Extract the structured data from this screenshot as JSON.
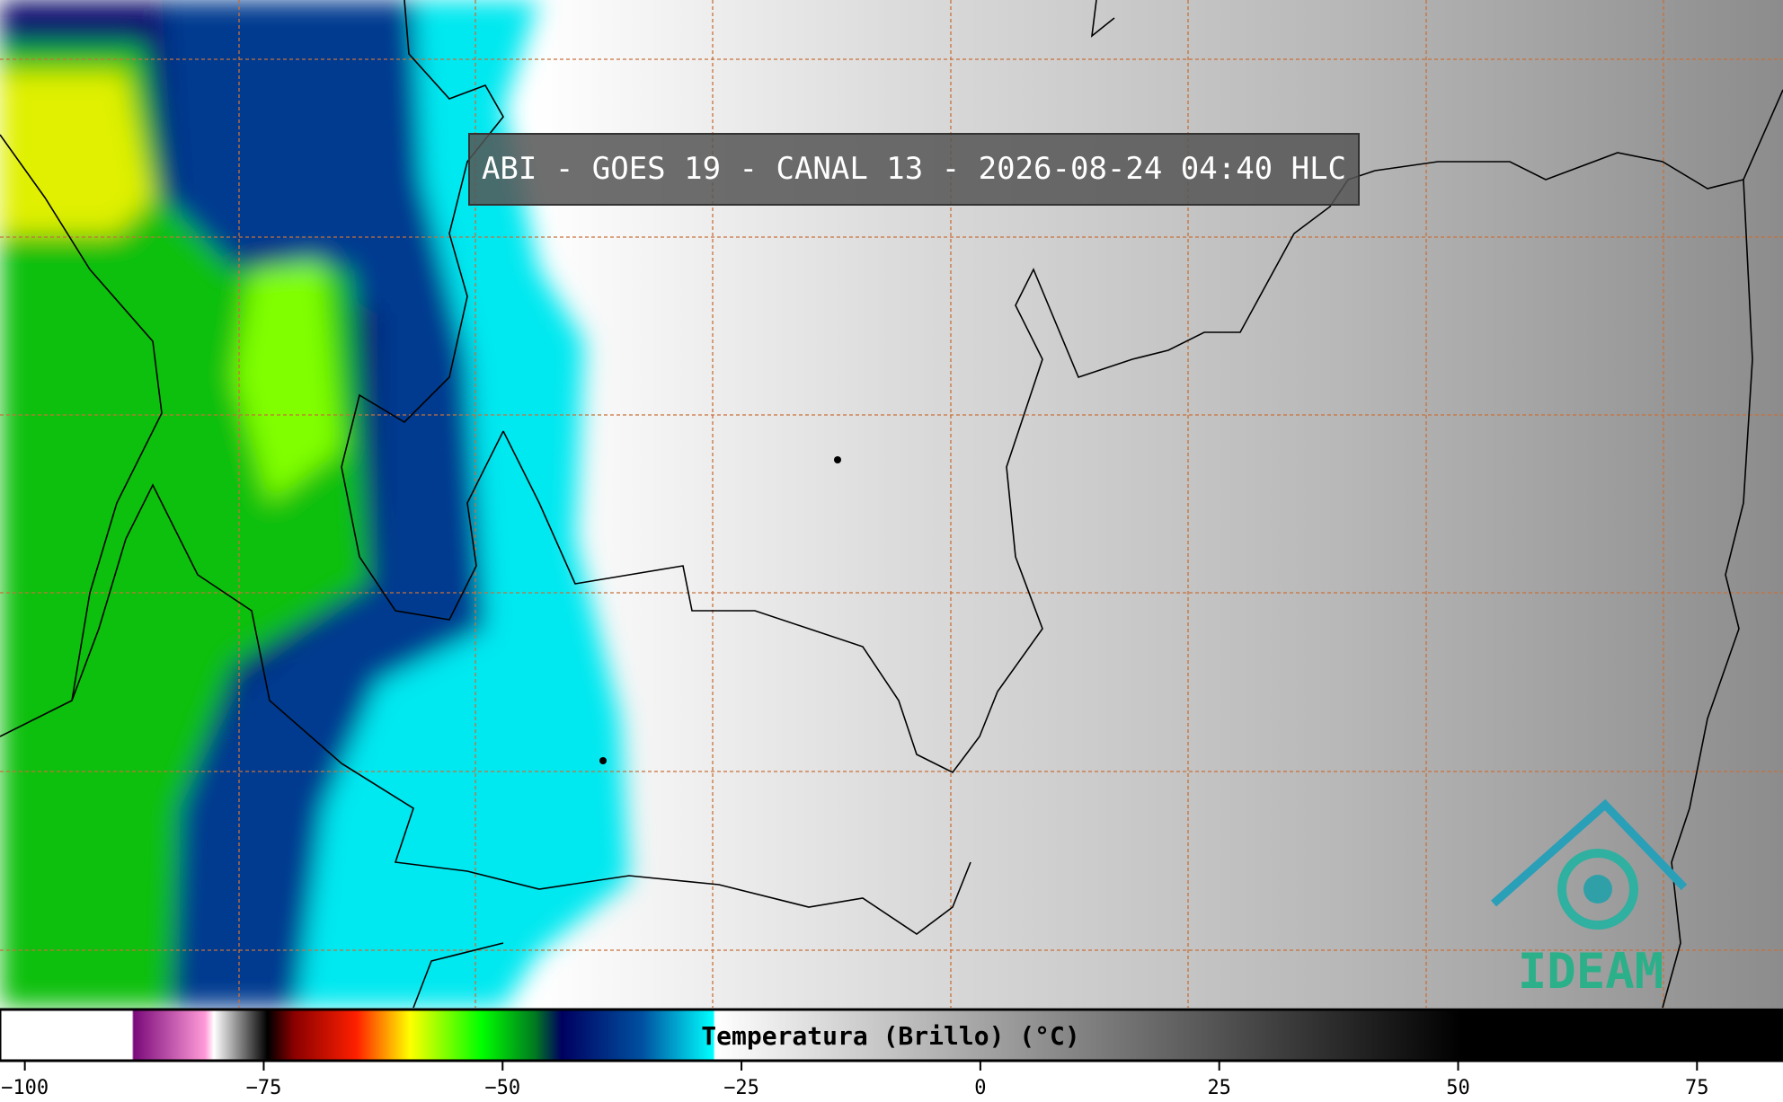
{
  "title": "ABI - GOES 19 - CANAL 13 - 2026-08-24 04:40 HLC",
  "colorbar": {
    "label": "Temperatura (Brillo) (°C)",
    "xlim": [
      -102.6,
      84
    ],
    "xticks": [
      {
        "value": -100,
        "label": "−100"
      },
      {
        "value": -75,
        "label": "−75"
      },
      {
        "value": -50,
        "label": "−50"
      },
      {
        "value": -25,
        "label": "−25"
      },
      0,
      25,
      50,
      75
    ]
  },
  "logo": "IDEAM"
}
